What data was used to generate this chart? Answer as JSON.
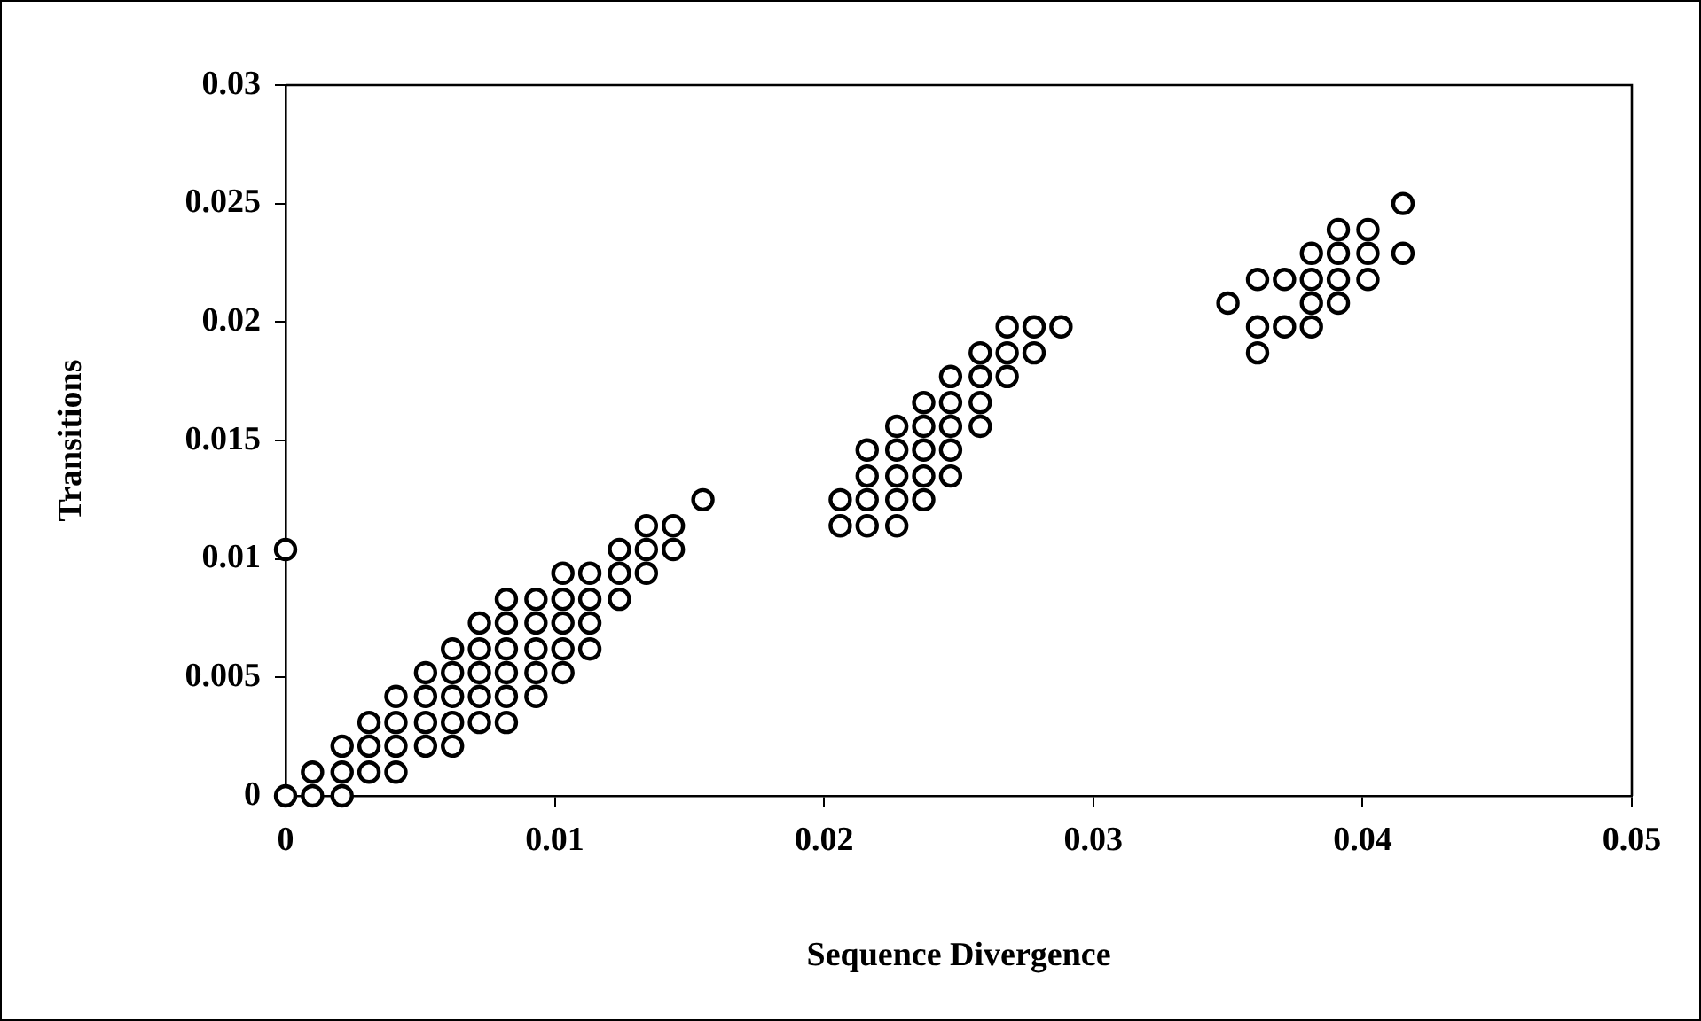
{
  "chart_data": {
    "type": "scatter",
    "xlabel": "Sequence Divergence",
    "ylabel": "Transitions",
    "marker": "circle",
    "grid": false,
    "legend": false,
    "xlim": [
      0,
      0.05
    ],
    "xticks": [
      0,
      0.01,
      0.02,
      0.03,
      0.04,
      0.05
    ],
    "ylim": [
      0,
      0.03
    ],
    "yticks": [
      0,
      0.005,
      0.01,
      0.015,
      0.02,
      0.025,
      0.03
    ],
    "series": [
      {
        "color": "#000000",
        "x": [
          0,
          0.001,
          0.0021,
          0.001,
          0.0021,
          0.0031,
          0.0041,
          0.0021,
          0.0031,
          0.0041,
          0.0052,
          0.0062,
          0.0031,
          0.0041,
          0.0052,
          0.0062,
          0.0072,
          0.0082,
          0.0041,
          0.0052,
          0.0062,
          0.0072,
          0.0082,
          0.0093,
          0.0052,
          0.0062,
          0.0072,
          0.0082,
          0.0093,
          0.0103,
          0.0062,
          0.0072,
          0.0082,
          0.0093,
          0.0103,
          0.0113,
          0.0072,
          0.0082,
          0.0093,
          0.0103,
          0.0113,
          0.0082,
          0.0093,
          0.0103,
          0.0113,
          0.0124,
          0.0103,
          0.0113,
          0.0124,
          0.0134,
          0,
          0.0124,
          0.0134,
          0.0144,
          0.0134,
          0.0144,
          0.0206,
          0.0216,
          0.0227,
          0.0155,
          0.0206,
          0.0216,
          0.0227,
          0.0237,
          0.0216,
          0.0227,
          0.0237,
          0.0247,
          0.0216,
          0.0227,
          0.0237,
          0.0247,
          0.0227,
          0.0237,
          0.0247,
          0.0258,
          0.0237,
          0.0247,
          0.0258,
          0.0247,
          0.0258,
          0.0268,
          0.0258,
          0.0268,
          0.0278,
          0.0361,
          0.0268,
          0.0278,
          0.0288,
          0.0361,
          0.0371,
          0.0381,
          0.035,
          0.0381,
          0.0391,
          0.0361,
          0.0371,
          0.0381,
          0.0391,
          0.0402,
          0.0381,
          0.0391,
          0.0402,
          0.0415,
          0.0391,
          0.0402,
          0.0415
        ],
        "values": [
          0,
          0,
          0,
          0.001,
          0.001,
          0.001,
          0.001,
          0.0021,
          0.0021,
          0.0021,
          0.0021,
          0.0021,
          0.0031,
          0.0031,
          0.0031,
          0.0031,
          0.0031,
          0.0031,
          0.0042,
          0.0042,
          0.0042,
          0.0042,
          0.0042,
          0.0042,
          0.0052,
          0.0052,
          0.0052,
          0.0052,
          0.0052,
          0.0052,
          0.0062,
          0.0062,
          0.0062,
          0.0062,
          0.0062,
          0.0062,
          0.0073,
          0.0073,
          0.0073,
          0.0073,
          0.0073,
          0.0083,
          0.0083,
          0.0083,
          0.0083,
          0.0083,
          0.0094,
          0.0094,
          0.0094,
          0.0094,
          0.0104,
          0.0104,
          0.0104,
          0.0104,
          0.0114,
          0.0114,
          0.0114,
          0.0114,
          0.0114,
          0.0125,
          0.0125,
          0.0125,
          0.0125,
          0.0125,
          0.0135,
          0.0135,
          0.0135,
          0.0135,
          0.0146,
          0.0146,
          0.0146,
          0.0146,
          0.0156,
          0.0156,
          0.0156,
          0.0156,
          0.0166,
          0.0166,
          0.0166,
          0.0177,
          0.0177,
          0.0177,
          0.0187,
          0.0187,
          0.0187,
          0.0187,
          0.0198,
          0.0198,
          0.0198,
          0.0198,
          0.0198,
          0.0198,
          0.0208,
          0.0208,
          0.0208,
          0.0218,
          0.0218,
          0.0218,
          0.0218,
          0.0218,
          0.0229,
          0.0229,
          0.0229,
          0.0229,
          0.0239,
          0.0239,
          0.025
        ]
      }
    ]
  }
}
